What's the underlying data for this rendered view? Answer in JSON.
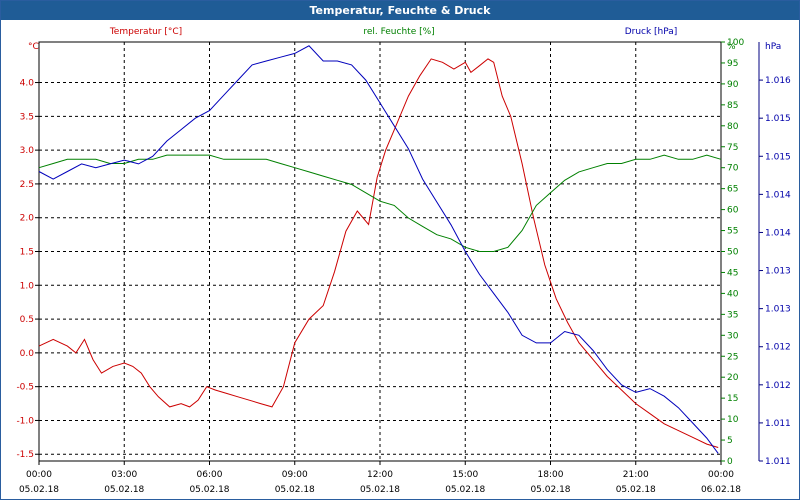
{
  "window_title": "Temperatur, Feuchte & Druck",
  "chart_data": {
    "type": "line",
    "title": "Temperatur, Feuchte & Druck",
    "x_labels": [
      {
        "time": "00:00",
        "date": "05.02.18"
      },
      {
        "time": "03:00",
        "date": "05.02.18"
      },
      {
        "time": "06:00",
        "date": "05.02.18"
      },
      {
        "time": "09:00",
        "date": "05.02.18"
      },
      {
        "time": "12:00",
        "date": "05.02.18"
      },
      {
        "time": "15:00",
        "date": "05.02.18"
      },
      {
        "time": "18:00",
        "date": "05.02.18"
      },
      {
        "time": "21:00",
        "date": "05.02.18"
      },
      {
        "time": "00:00",
        "date": "06.02.18"
      }
    ],
    "xlim": [
      0,
      24
    ],
    "axes": {
      "temperature": {
        "label": "Temperatur [°C]",
        "unit": "°C",
        "ylim": [
          -1.6,
          4.6
        ],
        "ticks": [
          "-1.5",
          "-1.0",
          "-0.5",
          "0.0",
          "0.5",
          "1.0",
          "1.5",
          "2.0",
          "2.5",
          "3.0",
          "3.5",
          "4.0"
        ],
        "tick_values": [
          -1.5,
          -1.0,
          -0.5,
          0,
          0.5,
          1.0,
          1.5,
          2.0,
          2.5,
          3.0,
          3.5,
          4.0
        ]
      },
      "humidity": {
        "label": "rel. Feuchte [%]",
        "unit": "%",
        "ylim": [
          0,
          100
        ],
        "ticks": [
          "0",
          "5",
          "10",
          "15",
          "20",
          "25",
          "30",
          "35",
          "40",
          "45",
          "50",
          "55",
          "60",
          "65",
          "70",
          "75",
          "80",
          "85",
          "90",
          "95",
          "100"
        ],
        "tick_values": [
          0,
          5,
          10,
          15,
          20,
          25,
          30,
          35,
          40,
          45,
          50,
          55,
          60,
          65,
          70,
          75,
          80,
          85,
          90,
          95,
          100
        ]
      },
      "pressure": {
        "label": "Druck [hPa]",
        "unit": "hPa",
        "ylim": [
          1011.0,
          1016.5
        ],
        "ticks": [
          "1.016",
          "1.015",
          "1.015",
          "1.014",
          "1.014",
          "1.013",
          "1.013",
          "1.012",
          "1.012",
          "1.011",
          "1.011"
        ],
        "tick_values": [
          1016.0,
          1015.5,
          1015.0,
          1014.5,
          1014.0,
          1013.5,
          1013.0,
          1012.5,
          1012.0,
          1011.5,
          1011.0
        ]
      }
    },
    "series": [
      {
        "name": "Temperatur [°C]",
        "axis": "temperature",
        "color": "#cc0000",
        "x": [
          0,
          0.5,
          1,
          1.3,
          1.6,
          1.9,
          2.2,
          2.6,
          3,
          3.3,
          3.6,
          3.9,
          4.2,
          4.6,
          5,
          5.3,
          5.6,
          5.9,
          6.2,
          6.6,
          7,
          7.4,
          7.8,
          8.2,
          8.6,
          9,
          9.5,
          10,
          10.4,
          10.8,
          11.2,
          11.6,
          11.9,
          12.2,
          12.6,
          13,
          13.4,
          13.8,
          14.2,
          14.6,
          15,
          15.2,
          15.5,
          15.8,
          16,
          16.3,
          16.6,
          17,
          17.4,
          17.8,
          18.2,
          18.6,
          19,
          19.5,
          20,
          20.5,
          21,
          21.5,
          22,
          22.5,
          23,
          23.5,
          23.9
        ],
        "y": [
          0.1,
          0.2,
          0.1,
          0.0,
          0.2,
          -0.1,
          -0.3,
          -0.2,
          -0.15,
          -0.2,
          -0.3,
          -0.5,
          -0.65,
          -0.8,
          -0.75,
          -0.8,
          -0.7,
          -0.5,
          -0.55,
          -0.6,
          -0.65,
          -0.7,
          -0.75,
          -0.8,
          -0.5,
          0.15,
          0.5,
          0.7,
          1.2,
          1.8,
          2.1,
          1.9,
          2.6,
          3.0,
          3.4,
          3.8,
          4.1,
          4.35,
          4.3,
          4.2,
          4.3,
          4.15,
          4.25,
          4.35,
          4.3,
          3.8,
          3.5,
          2.8,
          2.0,
          1.3,
          0.8,
          0.45,
          0.15,
          -0.1,
          -0.35,
          -0.55,
          -0.75,
          -0.9,
          -1.05,
          -1.15,
          -1.25,
          -1.35,
          -1.4
        ]
      },
      {
        "name": "rel. Feuchte [%]",
        "axis": "humidity",
        "color": "#008000",
        "x": [
          0,
          0.5,
          1,
          1.5,
          2,
          2.5,
          3,
          3.5,
          4,
          4.5,
          5,
          5.5,
          6,
          6.5,
          7,
          7.5,
          8,
          8.5,
          9,
          9.5,
          10,
          10.5,
          11,
          11.5,
          12,
          12.5,
          13,
          13.5,
          14,
          14.5,
          15,
          15.5,
          16,
          16.5,
          17,
          17.5,
          18,
          18.5,
          19,
          19.5,
          20,
          20.5,
          21,
          21.5,
          22,
          22.5,
          23,
          23.5,
          24
        ],
        "y": [
          70,
          71,
          72,
          72,
          72,
          71,
          71,
          72,
          72,
          73,
          73,
          73,
          73,
          72,
          72,
          72,
          72,
          71,
          70,
          69,
          68,
          67,
          66,
          64,
          62,
          61,
          58,
          56,
          54,
          53,
          51,
          50,
          50,
          51,
          55,
          61,
          64,
          67,
          69,
          70,
          71,
          71,
          72,
          72,
          73,
          72,
          72,
          73,
          72
        ]
      },
      {
        "name": "Druck [hPa]",
        "axis": "pressure",
        "color": "#0000bb",
        "x": [
          0,
          0.5,
          1,
          1.5,
          2,
          2.5,
          3,
          3.5,
          4,
          4.5,
          5,
          5.5,
          6,
          6.5,
          7,
          7.5,
          8,
          8.5,
          9,
          9.5,
          10,
          10.5,
          11,
          11.5,
          12,
          12.5,
          13,
          13.5,
          14,
          14.5,
          15,
          15.5,
          16,
          16.5,
          17,
          17.5,
          18,
          18.5,
          19,
          19.5,
          20,
          20.5,
          21,
          21.5,
          22,
          22.5,
          23,
          23.5,
          23.9
        ],
        "y": [
          1014.8,
          1014.7,
          1014.8,
          1014.9,
          1014.85,
          1014.9,
          1014.95,
          1014.9,
          1015.0,
          1015.2,
          1015.35,
          1015.5,
          1015.6,
          1015.8,
          1016.0,
          1016.2,
          1016.25,
          1016.3,
          1016.35,
          1016.45,
          1016.25,
          1016.25,
          1016.2,
          1016.0,
          1015.7,
          1015.4,
          1015.1,
          1014.7,
          1014.4,
          1014.1,
          1013.75,
          1013.45,
          1013.2,
          1012.95,
          1012.65,
          1012.55,
          1012.55,
          1012.7,
          1012.65,
          1012.45,
          1012.2,
          1012.0,
          1011.9,
          1011.95,
          1011.85,
          1011.7,
          1011.5,
          1011.3,
          1011.1
        ]
      }
    ],
    "grid": true
  }
}
